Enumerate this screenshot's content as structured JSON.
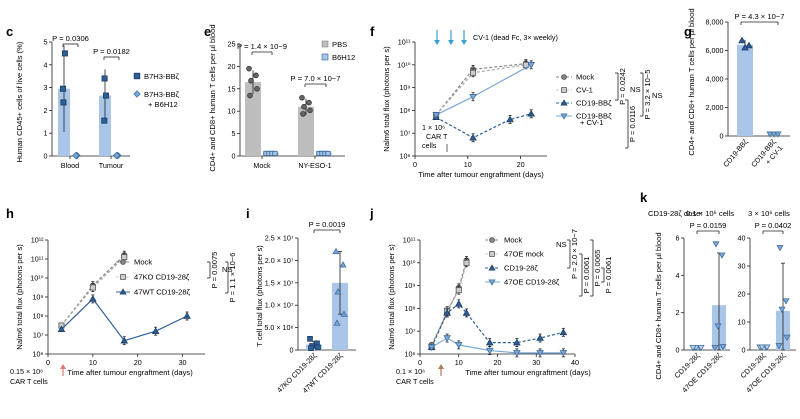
{
  "colors": {
    "blue": "#2d5f96",
    "light_blue": "#7aa8d8",
    "bar_blue": "#a9c6e8",
    "gray": "#bdbdbd",
    "dark_gray": "#666666",
    "axis": "#222222",
    "red_arrow": "#e07a70",
    "cyan_arrow": "#3aa0d0"
  },
  "chart_data": [
    {
      "id": "c",
      "type": "bar",
      "panel_label": "c",
      "ylabel": "Human CD45+ cells of live cells (%)",
      "yscale": "linear",
      "ylim": [
        0,
        5
      ],
      "yticks": [
        0,
        1,
        2,
        3,
        4,
        5
      ],
      "ytick_labels": [
        "0",
        "1",
        "2",
        "3",
        "4",
        "5"
      ],
      "categories": [
        "Blood",
        "Tumour"
      ],
      "series": [
        {
          "name": "B7H3-BBζ",
          "marker": "square",
          "values": [
            2.95,
            2.65
          ],
          "err": [
            1.9,
            1.15
          ],
          "points": [
            [
              4.5,
              2.95,
              2.35
            ],
            [
              3.4,
              2.65,
              1.55
            ]
          ]
        },
        {
          "name": "B7H3-BBζ + B6H12",
          "marker": "diamond",
          "values": [
            0.02,
            0.02
          ],
          "err": [
            0.01,
            0.01
          ],
          "points": [
            [
              0.02,
              0.02,
              0.02
            ],
            [
              0.02,
              0.02,
              0.02
            ]
          ]
        }
      ],
      "legend": [
        "B7H3-BBζ",
        "B7H3-BBζ",
        "+ B6H12"
      ],
      "pvalues": [
        "P = 0.0306",
        "P = 0.0182"
      ]
    },
    {
      "id": "e",
      "type": "bar",
      "panel_label": "e",
      "ylabel": "CD4+ and CD8+ human T cells per µl blood",
      "yscale": "linear",
      "ylim": [
        0,
        25
      ],
      "yticks": [
        0,
        5,
        10,
        15,
        20,
        25
      ],
      "ytick_labels": [
        "0",
        "5",
        "10",
        "15",
        "20",
        "25"
      ],
      "categories": [
        "Mock",
        "NY-ESO-1"
      ],
      "series": [
        {
          "name": "PBS",
          "marker": "circle",
          "values": [
            16.5,
            11.0
          ],
          "err": [
            2.6,
            1.8
          ],
          "points": [
            [
              19.5,
              18.0,
              16.8,
              15.0,
              13.5
            ],
            [
              13.0,
              11.9,
              11.0,
              10.2,
              9.4
            ]
          ]
        },
        {
          "name": "B6H12",
          "marker": "square",
          "values": [
            0.3,
            0.3
          ],
          "err": [
            0.1,
            0.1
          ],
          "points": [
            [
              0.3,
              0.3,
              0.3,
              0.3,
              0.3
            ],
            [
              0.3,
              0.3,
              0.3,
              0.3,
              0.3
            ]
          ]
        }
      ],
      "legend": [
        "PBS",
        "B6H12"
      ],
      "pvalues": [
        "P = 1.4 × 10−9",
        "P = 7.0 × 10−7"
      ]
    },
    {
      "id": "f",
      "type": "line",
      "panel_label": "f",
      "ylabel": "Nalm6 total flux (photons per s)",
      "xlabel": "Time after tumour engraftment (days)",
      "yscale": "log",
      "ylim": [
        6,
        11
      ],
      "yticks": [
        6,
        7,
        8,
        9,
        10,
        11
      ],
      "ytick_labels": [
        "10⁶",
        "10⁷",
        "10⁸",
        "10⁹",
        "10¹⁰",
        "10¹¹"
      ],
      "xlim": [
        0,
        25
      ],
      "xticks": [
        0,
        10,
        20
      ],
      "xtick_labels": [
        "0",
        "10",
        "20"
      ],
      "series": [
        {
          "name": "Mock",
          "style": "dashed",
          "marker": "circle",
          "x": [
            4,
            11,
            21
          ],
          "y": [
            7.8,
            9.8,
            10.05
          ]
        },
        {
          "name": "CV-1",
          "style": "dashed",
          "marker": "square",
          "x": [
            4,
            11,
            21
          ],
          "y": [
            7.8,
            9.65,
            10.0
          ]
        },
        {
          "name": "CD19-BBζ",
          "style": "dashed",
          "marker": "triangle-up",
          "x": [
            4,
            11,
            18,
            22
          ],
          "y": [
            7.7,
            6.8,
            7.6,
            7.85
          ]
        },
        {
          "name": "CD19-BBζ + CV-1",
          "style": "solid",
          "marker": "triangle-down",
          "x": [
            4,
            11,
            22
          ],
          "y": [
            7.8,
            8.6,
            10.0
          ]
        }
      ],
      "legend": [
        "Mock",
        "CV-1",
        "CD19-BBζ",
        "CD19-BBζ",
        "+ CV-1"
      ],
      "annotations": {
        "treatment": "CV-1 (dead Fc, 3× weekly)",
        "cart_1": "1 × 10⁶",
        "cart_2": "CAR T",
        "cart_3": "cells"
      },
      "pvalues": [
        "P = 0.0242",
        "NS",
        "P = 3.2 × 10−5",
        "NS",
        "P = 0.0116"
      ]
    },
    {
      "id": "g",
      "type": "bar",
      "panel_label": "g",
      "ylabel": "CD4+ and CD8+ human T cells per µl blood",
      "yscale": "linear",
      "ylim": [
        0,
        8000
      ],
      "yticks": [
        0,
        2000,
        4000,
        6000,
        8000
      ],
      "ytick_labels": [
        "0",
        "2,000",
        "4,000",
        "6,000",
        "8,000"
      ],
      "categories": [
        "CD19-BBζ",
        "CD19-BBζ + CV-1"
      ],
      "category_labels": [
        "CD19-BBζ",
        "CD19-BBζ",
        "+ CV-1"
      ],
      "series": [
        {
          "name": "values",
          "values": [
            6400,
            30
          ],
          "err": [
            350,
            10
          ],
          "points": [
            [
              6700,
              6350,
              6200
            ],
            [
              30,
              30,
              30
            ]
          ]
        }
      ],
      "pvalues": [
        "P = 4.3 × 10−7"
      ]
    },
    {
      "id": "h",
      "type": "line",
      "panel_label": "h",
      "ylabel": "Nalm6 total flux (photons per s)",
      "xlabel": "Time after tumour engraftment (days)",
      "yscale": "log",
      "ylim": [
        6,
        12
      ],
      "yticks": [
        6,
        7,
        8,
        9,
        10,
        11,
        12
      ],
      "ytick_labels": [
        "10⁶",
        "10⁷",
        "10⁸",
        "10⁹",
        "10¹⁰",
        "10¹¹",
        "10¹²"
      ],
      "xlim": [
        0,
        35
      ],
      "xticks": [
        0,
        10,
        20,
        30
      ],
      "xtick_labels": [
        "0",
        "10",
        "20",
        "30"
      ],
      "series": [
        {
          "name": "Mock",
          "style": "dashed",
          "marker": "circle",
          "x": [
            3,
            10,
            17
          ],
          "y": [
            7.5,
            9.6,
            11.2
          ]
        },
        {
          "name": "47KO CD19-28ζ",
          "style": "dashed",
          "marker": "square",
          "x": [
            3,
            10,
            17
          ],
          "y": [
            7.5,
            9.5,
            11.1
          ]
        },
        {
          "name": "47WT CD19-28ζ",
          "style": "solid",
          "marker": "triangle-up",
          "x": [
            3,
            10,
            17,
            24,
            31
          ],
          "y": [
            7.3,
            8.9,
            6.7,
            7.2,
            8.0
          ]
        }
      ],
      "legend": [
        "Mock",
        "47KO CD19-28ζ",
        "47WT CD19-28ζ"
      ],
      "annotations": {
        "cart_1": "0.15 × 10⁶",
        "cart_2": "CAR T cells"
      },
      "pvalues": [
        "P = 0.0075",
        "NS",
        "P = 1.1 × 10−6"
      ]
    },
    {
      "id": "i",
      "type": "bar",
      "panel_label": "i",
      "ylabel": "T cell total flux (photons per s)",
      "yscale": "linear",
      "ylim": [
        0,
        25000000
      ],
      "yticks": [
        0,
        5000000,
        10000000,
        15000000,
        20000000,
        25000000
      ],
      "ytick_labels": [
        "0",
        "5.0 × 10⁶",
        "1.0 × 10⁷",
        "1.5 × 10⁷",
        "2.0 × 10⁷",
        "2.5 × 10⁷"
      ],
      "categories": [
        "47KO CD19-28ζ",
        "47WT CD19-28ζ"
      ],
      "series": [
        {
          "name": "values",
          "values": [
            1200000,
            15000000
          ],
          "err": [
            700000,
            7000000
          ],
          "points": [
            [
              2500000,
              1500000,
              900000,
              600000,
              400000
            ],
            [
              22000000,
              19000000,
              13000000,
              8000000,
              6000000
            ]
          ]
        }
      ],
      "pvalues": [
        "P = 0.0019"
      ]
    },
    {
      "id": "j",
      "type": "line",
      "panel_label": "j",
      "ylabel": "Nalm6 total flux (photons per s)",
      "xlabel": "Time after tumour engraftment (days)",
      "yscale": "log",
      "ylim": [
        6,
        11
      ],
      "yticks": [
        6,
        7,
        8,
        9,
        10,
        11
      ],
      "ytick_labels": [
        "10⁶",
        "10⁷",
        "10⁸",
        "10⁹",
        "10¹⁰",
        "10¹¹"
      ],
      "xlim": [
        0,
        40
      ],
      "xticks": [
        0,
        10,
        20,
        30,
        40
      ],
      "xtick_labels": [
        "0",
        "10",
        "20",
        "30",
        "40"
      ],
      "series": [
        {
          "name": "Mock",
          "style": "dashed",
          "marker": "circle",
          "x": [
            3,
            7,
            10,
            12
          ],
          "y": [
            6.4,
            7.8,
            8.9,
            10.1
          ]
        },
        {
          "name": "47OE mock",
          "style": "dashed",
          "marker": "square",
          "x": [
            3,
            7,
            10,
            12
          ],
          "y": [
            6.3,
            7.9,
            8.8,
            10.0
          ]
        },
        {
          "name": "CD19-28ζ",
          "style": "dashed",
          "marker": "triangle-up",
          "x": [
            3,
            7,
            10,
            12,
            18,
            25,
            31,
            37
          ],
          "y": [
            6.3,
            7.8,
            8.2,
            7.8,
            6.5,
            6.5,
            6.7,
            6.95
          ]
        },
        {
          "name": "47OE CD19-28ζ",
          "style": "solid",
          "marker": "triangle-down",
          "x": [
            3,
            7,
            10,
            18,
            25,
            31,
            37
          ],
          "y": [
            6.3,
            6.7,
            6.4,
            6.15,
            6.05,
            6.05,
            6.05
          ]
        }
      ],
      "legend": [
        "Mock",
        "47OE mock",
        "CD19-28ζ",
        "47OE CD19-28ζ"
      ],
      "annotations": {
        "cart_1": "0.1 × 10⁶",
        "cart_2": "CAR T cells"
      },
      "pvalues": [
        "NS",
        "P = 2.0 × 10−7",
        "P = 0.0061",
        "P = 0.0065",
        "P = 0.0061"
      ]
    },
    {
      "id": "k",
      "type": "bar",
      "panel_label": "k",
      "ylabel": "CD4+ and CD8+ human T cells per µl blood",
      "dose_label": "CD19-28ζ dose:",
      "subplots": [
        {
          "title": "0.1 × 10⁶ cells",
          "ylim": [
            0,
            6
          ],
          "yticks": [
            0,
            2,
            4,
            6
          ],
          "ytick_labels": [
            "0",
            "2",
            "4",
            "6"
          ],
          "categories": [
            "CD19-28ζ",
            "47OE CD19-28ζ"
          ],
          "values": [
            0.05,
            2.4
          ],
          "err": [
            0.02,
            2.8
          ],
          "points": [
            [
              0.05,
              0.05,
              0.05,
              0.05,
              0.05
            ],
            [
              5.6,
              5.0,
              1.2,
              0.1,
              0.05
            ]
          ],
          "pvalue": "P = 0.0159"
        },
        {
          "title": "3 × 10⁶ cells",
          "ylim": [
            0,
            40
          ],
          "yticks": [
            0,
            10,
            20,
            30,
            40
          ],
          "ytick_labels": [
            "0",
            "10",
            "20",
            "30",
            "40"
          ],
          "categories": [
            "CD19-28ζ",
            "47OE CD19-28ζ"
          ],
          "values": [
            0.5,
            14.0
          ],
          "err": [
            0.2,
            17.0
          ],
          "points": [
            [
              0.5,
              0.5,
              0.5,
              0.5
            ],
            [
              36,
              17,
              14,
              4,
              1
            ]
          ],
          "pvalue": "P = 0.0402"
        }
      ]
    }
  ]
}
